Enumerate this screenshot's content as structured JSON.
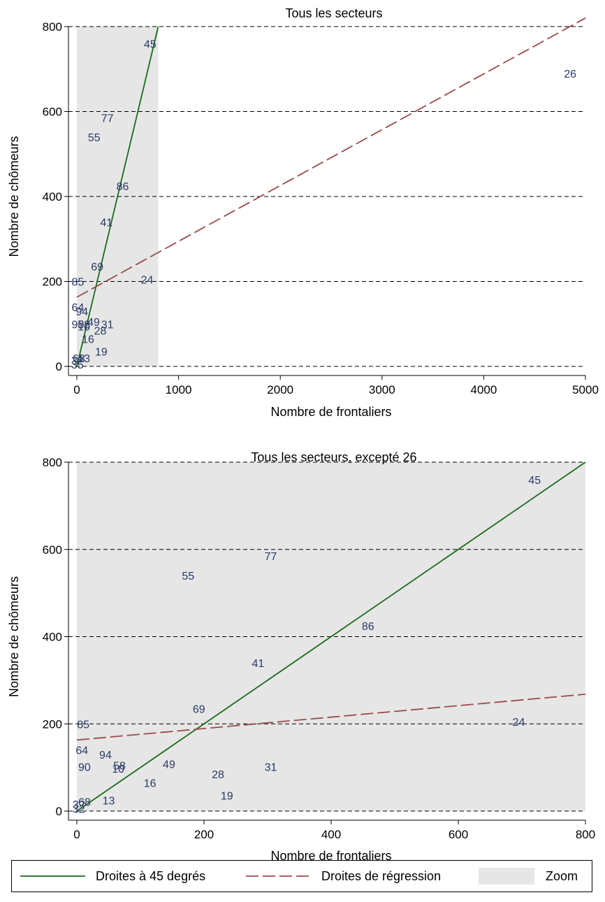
{
  "chart_data": [
    {
      "type": "scatter",
      "title": "Tous les secteurs",
      "xlabel": "Nombre de frontaliers",
      "ylabel": "Nombre de chômeurs",
      "xlim": [
        0,
        5000
      ],
      "ylim": [
        0,
        800
      ],
      "xticks": [
        0,
        1000,
        2000,
        3000,
        4000,
        5000
      ],
      "yticks": [
        0,
        200,
        400,
        600,
        800
      ],
      "grid": "horizontal-dashed",
      "zoom_region": {
        "x": [
          0,
          800
        ],
        "y": [
          0,
          800
        ]
      },
      "lines": [
        {
          "name": "Droites à 45 degrés",
          "style": "solid",
          "color": "#1a6b1a",
          "x": [
            0,
            800
          ],
          "y": [
            0,
            800
          ]
        },
        {
          "name": "Droites de régression",
          "style": "dashed",
          "color": "#9b4a4a",
          "x": [
            0,
            5000
          ],
          "y": [
            163,
            820
          ]
        }
      ],
      "points": [
        {
          "label": "26",
          "x": 4850,
          "y": 690
        },
        {
          "label": "45",
          "x": 720,
          "y": 760
        },
        {
          "label": "77",
          "x": 300,
          "y": 585
        },
        {
          "label": "55",
          "x": 170,
          "y": 540
        },
        {
          "label": "86",
          "x": 450,
          "y": 425
        },
        {
          "label": "41",
          "x": 290,
          "y": 340
        },
        {
          "label": "69",
          "x": 200,
          "y": 235
        },
        {
          "label": "85",
          "x": 10,
          "y": 200
        },
        {
          "label": "24",
          "x": 690,
          "y": 205
        },
        {
          "label": "64",
          "x": 10,
          "y": 140
        },
        {
          "label": "94",
          "x": 50,
          "y": 130
        },
        {
          "label": "90",
          "x": 10,
          "y": 100
        },
        {
          "label": "58",
          "x": 70,
          "y": 100
        },
        {
          "label": "10",
          "x": 70,
          "y": 95
        },
        {
          "label": "49",
          "x": 165,
          "y": 105
        },
        {
          "label": "31",
          "x": 300,
          "y": 100
        },
        {
          "label": "28",
          "x": 230,
          "y": 85
        },
        {
          "label": "16",
          "x": 110,
          "y": 65
        },
        {
          "label": "19",
          "x": 240,
          "y": 35
        },
        {
          "label": "13",
          "x": 70,
          "y": 20
        },
        {
          "label": "68",
          "x": 20,
          "y": 20
        },
        {
          "label": "3?",
          "x": 5,
          "y": 15
        },
        {
          "label": "35",
          "x": 5,
          "y": 5
        }
      ]
    },
    {
      "type": "scatter",
      "title": "Tous les secteurs, excepté 26",
      "xlabel": "Nombre de frontaliers",
      "ylabel": "Nombre de chômeurs",
      "xlim": [
        0,
        800
      ],
      "ylim": [
        0,
        800
      ],
      "xticks": [
        0,
        200,
        400,
        600,
        800
      ],
      "yticks": [
        0,
        200,
        400,
        600,
        800
      ],
      "grid": "horizontal-dashed",
      "zoom_region": {
        "x": [
          0,
          800
        ],
        "y": [
          0,
          800
        ]
      },
      "lines": [
        {
          "name": "Droites à 45 degrés",
          "style": "solid",
          "color": "#1a6b1a",
          "x": [
            0,
            800
          ],
          "y": [
            0,
            800
          ]
        },
        {
          "name": "Droites de régression",
          "style": "dashed",
          "color": "#9b4a4a",
          "x": [
            0,
            800
          ],
          "y": [
            163,
            268
          ]
        }
      ],
      "points": [
        {
          "label": "45",
          "x": 720,
          "y": 760
        },
        {
          "label": "77",
          "x": 305,
          "y": 585
        },
        {
          "label": "55",
          "x": 175,
          "y": 540
        },
        {
          "label": "86",
          "x": 458,
          "y": 425
        },
        {
          "label": "41",
          "x": 285,
          "y": 340
        },
        {
          "label": "69",
          "x": 192,
          "y": 235
        },
        {
          "label": "85",
          "x": 10,
          "y": 200
        },
        {
          "label": "24",
          "x": 695,
          "y": 205
        },
        {
          "label": "64",
          "x": 8,
          "y": 140
        },
        {
          "label": "94",
          "x": 45,
          "y": 130
        },
        {
          "label": "90",
          "x": 12,
          "y": 102
        },
        {
          "label": "58",
          "x": 67,
          "y": 105
        },
        {
          "label": "10",
          "x": 65,
          "y": 98
        },
        {
          "label": "49",
          "x": 145,
          "y": 108
        },
        {
          "label": "31",
          "x": 305,
          "y": 102
        },
        {
          "label": "28",
          "x": 222,
          "y": 85
        },
        {
          "label": "16",
          "x": 115,
          "y": 65
        },
        {
          "label": "19",
          "x": 236,
          "y": 36
        },
        {
          "label": "13",
          "x": 50,
          "y": 25
        },
        {
          "label": "68",
          "x": 12,
          "y": 22
        },
        {
          "label": "3?",
          "x": 3,
          "y": 16
        },
        {
          "label": "32",
          "x": 3,
          "y": 6
        }
      ]
    }
  ],
  "legend": {
    "placement": "bottom",
    "items": [
      {
        "label": "Droites à 45 degrés",
        "kind": "solid",
        "color": "#1a6b1a"
      },
      {
        "label": "Droites de régression",
        "kind": "dashed",
        "color": "#9b4a4a"
      },
      {
        "label": "Zoom",
        "kind": "area",
        "color": "#e6e6e6"
      }
    ]
  },
  "colors": {
    "point_label": "#2b3a67",
    "zoom_fill": "#e6e6e6",
    "grid": "#000000"
  }
}
